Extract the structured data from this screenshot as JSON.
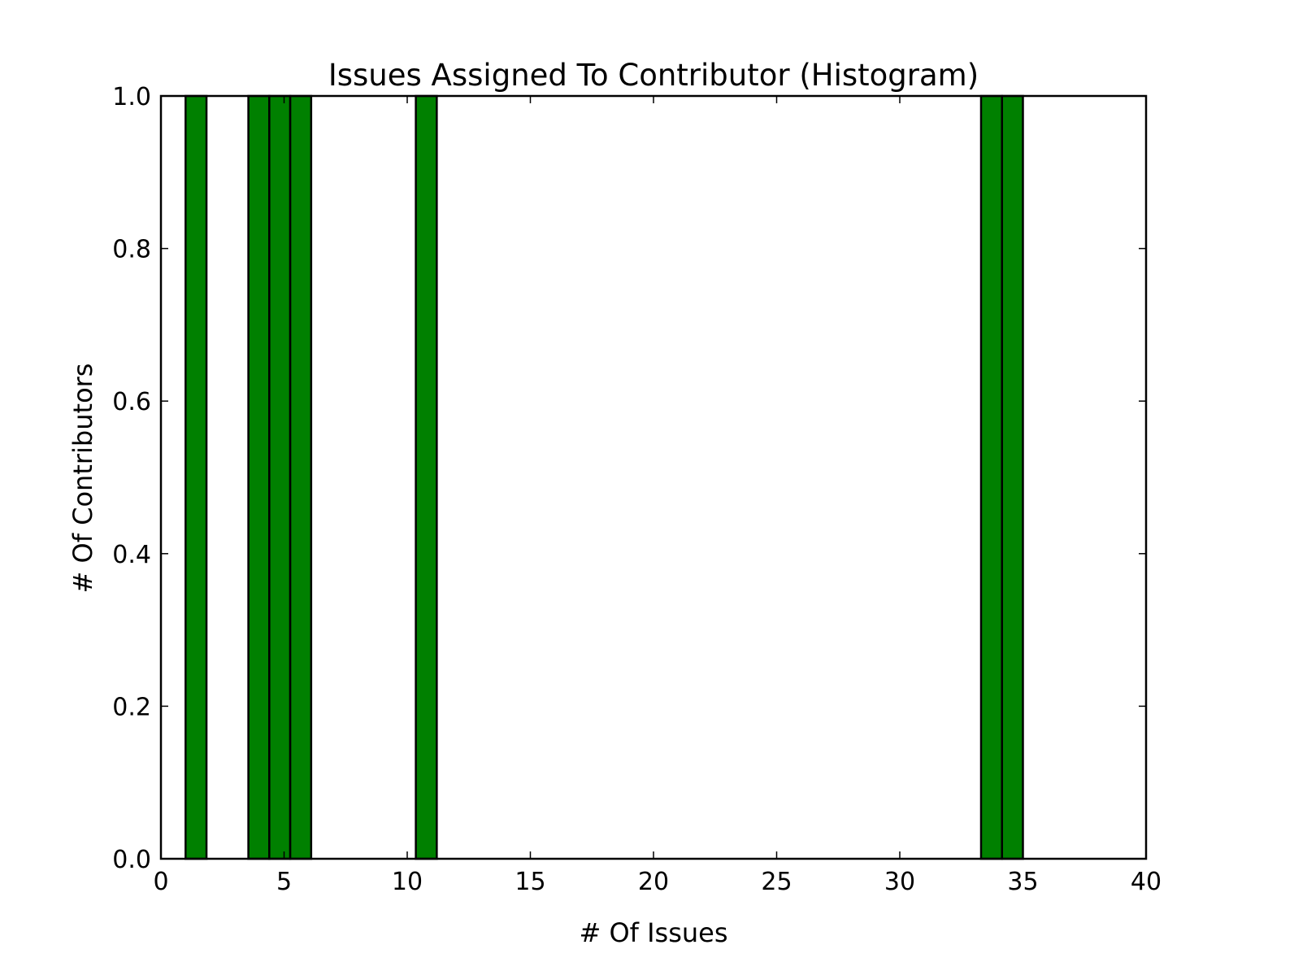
{
  "colors": {
    "bar_fill": "#008000",
    "bar_edge": "#000000",
    "background": "#ffffff"
  },
  "chart_data": {
    "type": "bar",
    "title": "Issues Assigned To Contributor (Histogram)",
    "xlabel": "# Of Issues",
    "ylabel": "# Of Contributors",
    "xlim": [
      0,
      40
    ],
    "ylim": [
      0,
      1.0
    ],
    "grid": false,
    "x_ticks": [
      "0",
      "5",
      "10",
      "15",
      "20",
      "25",
      "30",
      "35",
      "40"
    ],
    "y_ticks": [
      "0.0",
      "0.2",
      "0.4",
      "0.6",
      "0.8",
      "1.0"
    ],
    "bins": [
      {
        "x_start": 1.0,
        "x_end": 1.85,
        "count": 1
      },
      {
        "x_start": 3.55,
        "x_end": 4.4,
        "count": 1
      },
      {
        "x_start": 4.4,
        "x_end": 5.25,
        "count": 1
      },
      {
        "x_start": 5.25,
        "x_end": 6.1,
        "count": 1
      },
      {
        "x_start": 10.35,
        "x_end": 11.2,
        "count": 1
      },
      {
        "x_start": 33.3,
        "x_end": 34.15,
        "count": 1
      },
      {
        "x_start": 34.15,
        "x_end": 35.0,
        "count": 1
      }
    ]
  }
}
